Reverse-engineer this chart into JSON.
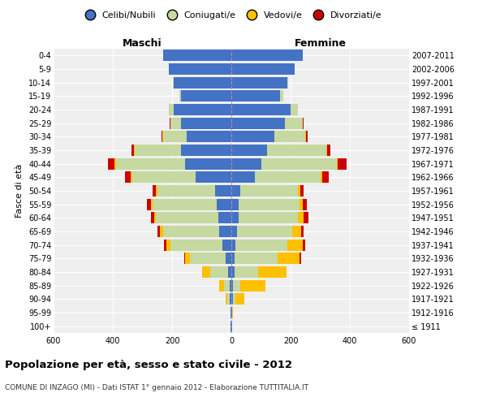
{
  "age_groups": [
    "100+",
    "95-99",
    "90-94",
    "85-89",
    "80-84",
    "75-79",
    "70-74",
    "65-69",
    "60-64",
    "55-59",
    "50-54",
    "45-49",
    "40-44",
    "35-39",
    "30-34",
    "25-29",
    "20-24",
    "15-19",
    "10-14",
    "5-9",
    "0-4"
  ],
  "birth_years": [
    "≤ 1911",
    "1912-1916",
    "1917-1921",
    "1922-1926",
    "1927-1931",
    "1932-1936",
    "1937-1941",
    "1942-1946",
    "1947-1951",
    "1952-1956",
    "1957-1961",
    "1962-1966",
    "1967-1971",
    "1972-1976",
    "1977-1981",
    "1982-1986",
    "1987-1991",
    "1992-1996",
    "1997-2001",
    "2002-2006",
    "2007-2011"
  ],
  "males": {
    "celibi": [
      2,
      2,
      5,
      5,
      10,
      20,
      30,
      40,
      45,
      50,
      55,
      120,
      155,
      170,
      150,
      170,
      195,
      170,
      195,
      210,
      230
    ],
    "coniugati": [
      1,
      2,
      8,
      20,
      60,
      120,
      175,
      190,
      210,
      215,
      195,
      215,
      235,
      155,
      80,
      35,
      15,
      5,
      2,
      0,
      0
    ],
    "vedovi": [
      0,
      0,
      5,
      15,
      30,
      15,
      15,
      10,
      5,
      5,
      5,
      5,
      5,
      3,
      2,
      1,
      0,
      0,
      0,
      0,
      0
    ],
    "divorziati": [
      0,
      0,
      0,
      0,
      0,
      5,
      8,
      10,
      12,
      15,
      12,
      18,
      22,
      8,
      3,
      1,
      0,
      0,
      0,
      0,
      0
    ]
  },
  "females": {
    "nubili": [
      2,
      2,
      5,
      5,
      10,
      10,
      15,
      20,
      25,
      25,
      30,
      80,
      100,
      120,
      145,
      180,
      200,
      165,
      190,
      215,
      240
    ],
    "coniugate": [
      1,
      2,
      8,
      25,
      80,
      145,
      175,
      185,
      200,
      205,
      195,
      220,
      255,
      200,
      105,
      60,
      25,
      10,
      2,
      0,
      0
    ],
    "vedove": [
      0,
      2,
      30,
      85,
      95,
      75,
      50,
      30,
      20,
      10,
      8,
      8,
      5,
      3,
      2,
      1,
      0,
      0,
      0,
      0,
      0
    ],
    "divorziate": [
      0,
      0,
      0,
      0,
      0,
      5,
      8,
      10,
      15,
      15,
      12,
      20,
      30,
      12,
      5,
      2,
      0,
      0,
      0,
      0,
      0
    ]
  },
  "colors": {
    "celibi": "#4472c4",
    "coniugati": "#c5d9a0",
    "vedovi": "#ffc000",
    "divorziati": "#cc0000"
  },
  "xlim": 600,
  "title": "Popolazione per età, sesso e stato civile - 2012",
  "subtitle": "COMUNE DI INZAGO (MI) - Dati ISTAT 1° gennaio 2012 - Elaborazione TUTTITALIA.IT",
  "ylabel_left": "Fasce di età",
  "xlabel_left": "Maschi",
  "xlabel_right": "Femmine",
  "bg_color": "#ffffff",
  "plot_bg": "#efefef",
  "grid_color": "#ffffff"
}
